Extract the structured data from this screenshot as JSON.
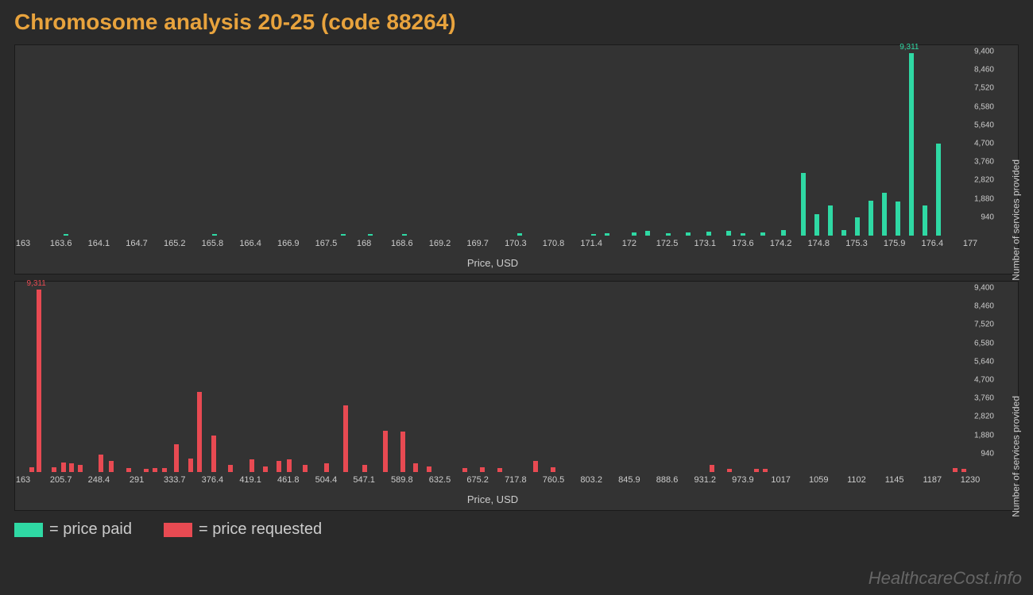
{
  "title": "Chromosome analysis 20-25 (code 88264)",
  "colors": {
    "background": "#2a2a2a",
    "panel": "#333333",
    "title": "#e8a33d",
    "text": "#cccccc",
    "paid": "#2fd9a4",
    "requested": "#e84a52"
  },
  "watermark": "HealthcareCost.info",
  "legend": {
    "paid": "= price paid",
    "requested": "= price requested"
  },
  "chart_paid": {
    "type": "bar",
    "xlabel": "Price, USD",
    "ylabel": "Number of services provided",
    "xmin": 163,
    "xmax": 177,
    "ymax": 9400,
    "xticks": [
      "163",
      "163.6",
      "164.1",
      "164.7",
      "165.2",
      "165.8",
      "166.4",
      "166.9",
      "167.5",
      "168",
      "168.6",
      "169.2",
      "169.7",
      "170.3",
      "170.8",
      "171.4",
      "172",
      "172.5",
      "173.1",
      "173.6",
      "174.2",
      "174.8",
      "175.3",
      "175.9",
      "176.4",
      "177"
    ],
    "yticks": [
      "940",
      "1,880",
      "2,820",
      "3,760",
      "4,700",
      "5,640",
      "6,580",
      "7,520",
      "8,460",
      "9,400"
    ],
    "max_label": "9,311",
    "bars": [
      {
        "x": 163.6,
        "y": 80
      },
      {
        "x": 165.8,
        "y": 80
      },
      {
        "x": 167.7,
        "y": 70
      },
      {
        "x": 168.1,
        "y": 70
      },
      {
        "x": 168.6,
        "y": 70
      },
      {
        "x": 170.3,
        "y": 140
      },
      {
        "x": 171.4,
        "y": 100
      },
      {
        "x": 171.6,
        "y": 120
      },
      {
        "x": 172.0,
        "y": 170
      },
      {
        "x": 172.2,
        "y": 250
      },
      {
        "x": 172.5,
        "y": 130
      },
      {
        "x": 172.8,
        "y": 150
      },
      {
        "x": 173.1,
        "y": 200
      },
      {
        "x": 173.4,
        "y": 260
      },
      {
        "x": 173.6,
        "y": 120
      },
      {
        "x": 173.9,
        "y": 180
      },
      {
        "x": 174.2,
        "y": 300
      },
      {
        "x": 174.5,
        "y": 3200
      },
      {
        "x": 174.7,
        "y": 1100
      },
      {
        "x": 174.9,
        "y": 1550
      },
      {
        "x": 175.1,
        "y": 280
      },
      {
        "x": 175.3,
        "y": 950
      },
      {
        "x": 175.5,
        "y": 1800
      },
      {
        "x": 175.7,
        "y": 2200
      },
      {
        "x": 175.9,
        "y": 1750
      },
      {
        "x": 176.1,
        "y": 9311
      },
      {
        "x": 176.3,
        "y": 1550
      },
      {
        "x": 176.5,
        "y": 4700
      }
    ]
  },
  "chart_requested": {
    "type": "bar",
    "xlabel": "Price, USD",
    "ylabel": "Number of services provided",
    "xmin": 163,
    "xmax": 1235,
    "ymax": 9400,
    "xticks": [
      "163",
      "205.7",
      "248.4",
      "291",
      "333.7",
      "376.4",
      "419.1",
      "461.8",
      "504.4",
      "547.1",
      "589.8",
      "632.5",
      "675.2",
      "717.8",
      "760.5",
      "803.2",
      "845.9",
      "888.6",
      "931.2",
      "973.9",
      "1017",
      "1059",
      "1102",
      "1145",
      "1187",
      "1230"
    ],
    "yticks": [
      "940",
      "1,880",
      "2,820",
      "3,760",
      "4,700",
      "5,640",
      "6,580",
      "7,520",
      "8,460",
      "9,400"
    ],
    "max_label": "9,311",
    "bars": [
      {
        "x": 170,
        "y": 250
      },
      {
        "x": 178,
        "y": 9311
      },
      {
        "x": 195,
        "y": 250
      },
      {
        "x": 206,
        "y": 500
      },
      {
        "x": 215,
        "y": 430
      },
      {
        "x": 225,
        "y": 350
      },
      {
        "x": 248,
        "y": 900
      },
      {
        "x": 260,
        "y": 550
      },
      {
        "x": 280,
        "y": 200
      },
      {
        "x": 300,
        "y": 180
      },
      {
        "x": 310,
        "y": 200
      },
      {
        "x": 320,
        "y": 220
      },
      {
        "x": 334,
        "y": 1400
      },
      {
        "x": 350,
        "y": 700
      },
      {
        "x": 360,
        "y": 4100
      },
      {
        "x": 376,
        "y": 1850
      },
      {
        "x": 395,
        "y": 350
      },
      {
        "x": 419,
        "y": 650
      },
      {
        "x": 435,
        "y": 300
      },
      {
        "x": 450,
        "y": 550
      },
      {
        "x": 462,
        "y": 650
      },
      {
        "x": 480,
        "y": 350
      },
      {
        "x": 504,
        "y": 450
      },
      {
        "x": 525,
        "y": 3400
      },
      {
        "x": 547,
        "y": 350
      },
      {
        "x": 570,
        "y": 2100
      },
      {
        "x": 590,
        "y": 2050
      },
      {
        "x": 605,
        "y": 450
      },
      {
        "x": 620,
        "y": 300
      },
      {
        "x": 660,
        "y": 200
      },
      {
        "x": 680,
        "y": 250
      },
      {
        "x": 700,
        "y": 200
      },
      {
        "x": 740,
        "y": 550
      },
      {
        "x": 760,
        "y": 250
      },
      {
        "x": 940,
        "y": 350
      },
      {
        "x": 960,
        "y": 180
      },
      {
        "x": 990,
        "y": 150
      },
      {
        "x": 1000,
        "y": 150
      },
      {
        "x": 1215,
        "y": 200
      },
      {
        "x": 1225,
        "y": 180
      }
    ]
  }
}
